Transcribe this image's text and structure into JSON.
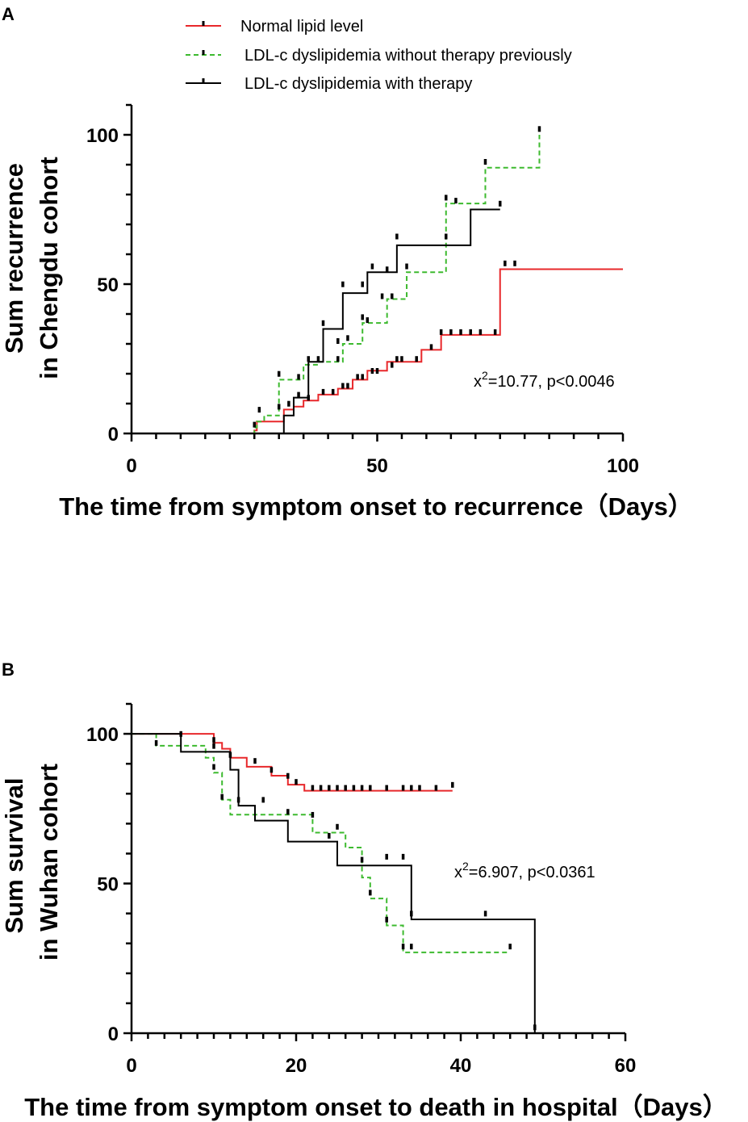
{
  "legend": {
    "entries": [
      {
        "name": "Normal lipid level",
        "color": "#e8282b",
        "dash": "solid"
      },
      {
        "name": "LDL-c dyslipidemia without therapy previously",
        "color": "#3dba2f",
        "dash": "dashed"
      },
      {
        "name": "LDL-c dyslipidemia with therapy",
        "color": "#000000",
        "dash": "solid"
      }
    ]
  },
  "chart_data": [
    {
      "type": "line",
      "panel": "A",
      "xlabel": "The time from symptom onset to recurrence（Days）",
      "ylabel": [
        "Sum recurrence",
        "in Chengdu cohort"
      ],
      "xlim": [
        0,
        100
      ],
      "ylim": [
        0,
        110
      ],
      "xticks": [
        0,
        50,
        100
      ],
      "yticks": [
        0,
        50,
        100
      ],
      "xminor_step": 5,
      "yminor_step": 10,
      "stat": "x2=10.77, p<0.0046",
      "stat_parts": {
        "base": "x",
        "sup": "2",
        "rest": "=10.77, p<0.0046"
      },
      "series": [
        {
          "name": "Normal lipid level",
          "color": "#e8282b",
          "dash": "solid",
          "x": [
            0,
            25,
            25.5,
            28,
            31,
            33,
            35,
            38,
            42,
            45,
            48,
            52,
            59,
            63,
            75,
            100
          ],
          "y": [
            0,
            1,
            4,
            4,
            8,
            9,
            11,
            13,
            15,
            18,
            21,
            24,
            28,
            33,
            55,
            55
          ],
          "censored": [
            [
              32,
              9
            ],
            [
              36,
              11
            ],
            [
              39,
              13
            ],
            [
              41,
              13
            ],
            [
              43,
              15
            ],
            [
              44,
              15
            ],
            [
              46,
              18
            ],
            [
              47,
              18
            ],
            [
              49,
              20
            ],
            [
              50,
              20
            ],
            [
              53,
              22
            ],
            [
              54,
              24
            ],
            [
              55,
              24
            ],
            [
              58,
              24
            ],
            [
              61,
              28
            ],
            [
              63,
              33
            ],
            [
              65,
              33
            ],
            [
              67,
              33
            ],
            [
              69,
              33
            ],
            [
              71,
              33
            ],
            [
              74,
              33
            ],
            [
              76,
              56
            ],
            [
              78,
              56
            ]
          ]
        },
        {
          "name": "LDL-c dyslipidemia without therapy previously",
          "color": "#3dba2f",
          "dash": "dashed",
          "x": [
            0,
            25,
            25.5,
            27,
            30,
            35,
            38,
            43,
            47,
            52,
            56,
            64,
            72,
            83,
            83
          ],
          "y": [
            0,
            2,
            4,
            6,
            18,
            23,
            24,
            30,
            37,
            45,
            54,
            77,
            89,
            89,
            100
          ],
          "censored": [
            [
              26,
              7
            ],
            [
              30,
              19
            ],
            [
              34,
              18
            ],
            [
              36,
              24
            ],
            [
              38,
              24
            ],
            [
              42,
              30
            ],
            [
              44,
              31
            ],
            [
              47,
              38
            ],
            [
              48,
              37
            ],
            [
              51,
              45
            ],
            [
              53,
              45
            ],
            [
              56,
              55
            ],
            [
              64,
              78
            ],
            [
              66,
              77
            ],
            [
              72,
              90
            ],
            [
              83,
              101
            ]
          ]
        },
        {
          "name": "LDL-c dyslipidemia with therapy",
          "color": "#000000",
          "dash": "solid",
          "x": [
            0,
            31,
            31,
            32,
            33,
            36,
            39,
            43,
            48,
            54,
            69,
            75
          ],
          "y": [
            0,
            0,
            6,
            6,
            12,
            24,
            35,
            47,
            54,
            63,
            75,
            75
          ],
          "censored": [
            [
              25,
              2
            ],
            [
              30,
              8
            ],
            [
              34,
              12
            ],
            [
              39,
              36
            ],
            [
              42,
              24
            ],
            [
              43,
              49
            ],
            [
              47,
              49
            ],
            [
              49,
              55
            ],
            [
              52,
              54
            ],
            [
              54,
              65
            ],
            [
              64,
              65
            ],
            [
              75,
              76
            ]
          ]
        }
      ]
    },
    {
      "type": "line",
      "panel": "B",
      "xlabel": "The time from symptom onset to death in hospital（Days）",
      "ylabel": [
        "Sum survival",
        "in Wuhan cohort"
      ],
      "xlim": [
        0,
        60
      ],
      "ylim": [
        0,
        110
      ],
      "xticks": [
        0,
        20,
        40,
        60
      ],
      "yticks": [
        0,
        50,
        100
      ],
      "xminor_step": 2,
      "yminor_step": 10,
      "stat": "x2=6.907, p<0.0361",
      "stat_parts": {
        "base": "x",
        "sup": "2",
        "rest": "=6.907, p<0.0361"
      },
      "series": [
        {
          "name": "Normal lipid level",
          "color": "#e8282b",
          "dash": "solid",
          "x": [
            0,
            10,
            10,
            11,
            12,
            14,
            17,
            19,
            21,
            39
          ],
          "y": [
            100,
            100,
            97,
            95,
            92,
            89,
            86,
            83,
            81,
            81
          ],
          "censored": [
            [
              10,
              97
            ],
            [
              12,
              92
            ],
            [
              15,
              90
            ],
            [
              17,
              87
            ],
            [
              19,
              85
            ],
            [
              20,
              83
            ],
            [
              22,
              81
            ],
            [
              23,
              81
            ],
            [
              24,
              81
            ],
            [
              25,
              81
            ],
            [
              26,
              81
            ],
            [
              27,
              81
            ],
            [
              28,
              81
            ],
            [
              29,
              81
            ],
            [
              31,
              81
            ],
            [
              33,
              81
            ],
            [
              34,
              81
            ],
            [
              35,
              81
            ],
            [
              37,
              81
            ],
            [
              39,
              82
            ]
          ]
        },
        {
          "name": "LDL-c dyslipidemia without therapy previously",
          "color": "#3dba2f",
          "dash": "dashed",
          "x": [
            0,
            3,
            5,
            9,
            10,
            11,
            12,
            15,
            22,
            26,
            28,
            29,
            31,
            33,
            46
          ],
          "y": [
            100,
            96,
            96,
            92,
            87,
            78,
            73,
            73,
            67,
            62,
            52,
            45,
            36,
            27,
            27
          ],
          "censored": [
            [
              3,
              96
            ],
            [
              10,
              88
            ],
            [
              11,
              78
            ],
            [
              16,
              77
            ],
            [
              19,
              73
            ],
            [
              22,
              72
            ],
            [
              25,
              68
            ],
            [
              28,
              57
            ],
            [
              29,
              46
            ],
            [
              31,
              37
            ],
            [
              33,
              28
            ],
            [
              34,
              28
            ],
            [
              46,
              28
            ]
          ]
        },
        {
          "name": "LDL-c dyslipidemia with therapy",
          "color": "#000000",
          "dash": "solid",
          "x": [
            0,
            6,
            12,
            13,
            15,
            19,
            25,
            34,
            34,
            49,
            49
          ],
          "y": [
            100,
            94,
            88,
            76,
            71,
            64,
            56,
            56,
            38,
            38,
            0
          ],
          "censored": [
            [
              6,
              99
            ],
            [
              10,
              95
            ],
            [
              13,
              77
            ],
            [
              24,
              65
            ],
            [
              31,
              58
            ],
            [
              33,
              58
            ],
            [
              34,
              39
            ],
            [
              43,
              39
            ],
            [
              49,
              1
            ]
          ]
        }
      ]
    }
  ]
}
